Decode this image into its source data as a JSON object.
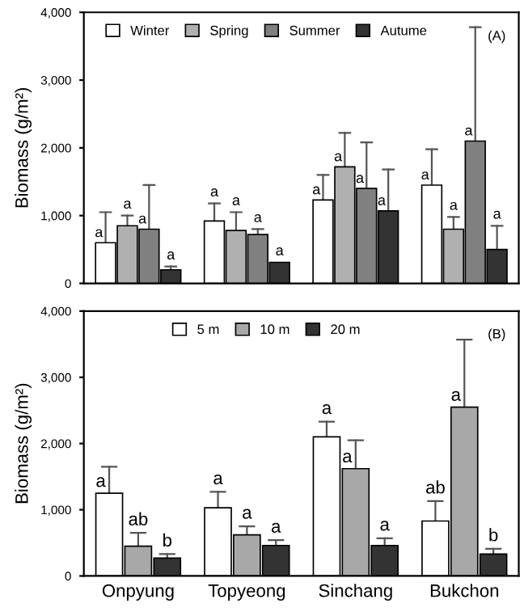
{
  "chart_data": [
    {
      "type": "bar",
      "ylabel": "Biomass (g/m²)",
      "categories": [
        null,
        null,
        null,
        null
      ],
      "tick_labels": "y",
      "ylim": [
        0,
        4000
      ],
      "yticks": [
        {
          "value": 0,
          "label": "0"
        },
        {
          "value": 1000,
          "label": "1,000"
        },
        {
          "value": 2000,
          "label": "2,000"
        },
        {
          "value": 3000,
          "label": "3,000"
        },
        {
          "value": 4000,
          "label": "4,000"
        }
      ],
      "legend": "top",
      "annotations": [
        "(A)"
      ],
      "series": [
        {
          "name": "Winter",
          "color": "#ffffff",
          "values": [
            600,
            920,
            1230,
            1450
          ],
          "errors": [
            [
              600,
              1050
            ],
            [
              920,
              1180
            ],
            [
              1230,
              1600
            ],
            [
              1450,
              1980
            ]
          ],
          "value_labels": [
            "a",
            "a",
            "a",
            "a"
          ]
        },
        {
          "name": "Spring",
          "color": "#b0b0b0",
          "values": [
            850,
            780,
            1720,
            800
          ],
          "errors": [
            [
              850,
              1000
            ],
            [
              780,
              1050
            ],
            [
              1720,
              2220
            ],
            [
              800,
              980
            ]
          ],
          "value_labels": [
            "a",
            "a",
            "a",
            "a"
          ]
        },
        {
          "name": "Summer",
          "color": "#808080",
          "values": [
            800,
            720,
            1400,
            2100
          ],
          "errors": [
            [
              800,
              1450
            ],
            [
              720,
              800
            ],
            [
              1400,
              2080
            ],
            [
              2100,
              3780
            ]
          ],
          "value_labels": [
            "a",
            "a",
            "a",
            "a"
          ]
        },
        {
          "name": "Autume",
          "color": "#333333",
          "values": [
            200,
            310,
            1070,
            500
          ],
          "errors": [
            [
              200,
              250
            ],
            null,
            [
              1070,
              1680
            ],
            [
              500,
              850
            ]
          ],
          "value_labels": [
            "a",
            "a",
            "a",
            "a"
          ]
        }
      ]
    },
    {
      "type": "bar",
      "ylabel": "Biomass (g/m²)",
      "categories": [
        "Onpyung",
        "Topyeong",
        "Sinchang",
        "Bukchon"
      ],
      "ylim": [
        0,
        4000
      ],
      "yticks": [
        {
          "value": 0,
          "label": "0"
        },
        {
          "value": 1000,
          "label": "1,000"
        },
        {
          "value": 2000,
          "label": "2,000"
        },
        {
          "value": 3000,
          "label": "3,000"
        },
        {
          "value": 4000,
          "label": "4,000"
        }
      ],
      "legend": "top",
      "annotations": [
        "(B)"
      ],
      "series": [
        {
          "name": "5 m",
          "color": "#ffffff",
          "values": [
            1250,
            1030,
            2100,
            830
          ],
          "errors": [
            [
              1250,
              1650
            ],
            [
              1030,
              1270
            ],
            [
              2100,
              2330
            ],
            [
              830,
              1130
            ]
          ],
          "value_labels": [
            "a",
            "a",
            "a",
            "ab"
          ]
        },
        {
          "name": "10 m",
          "color": "#a8a8a8",
          "values": [
            450,
            620,
            1620,
            2550
          ],
          "errors": [
            [
              450,
              650
            ],
            [
              620,
              750
            ],
            [
              1620,
              2050
            ],
            [
              2550,
              3570
            ]
          ],
          "value_labels": [
            "ab",
            "a",
            "a",
            "a"
          ]
        },
        {
          "name": "20 m",
          "color": "#333333",
          "values": [
            270,
            460,
            460,
            330
          ],
          "errors": [
            [
              270,
              330
            ],
            [
              460,
              540
            ],
            [
              460,
              570
            ],
            [
              330,
              410
            ]
          ],
          "value_labels": [
            "b",
            "a",
            "a",
            "b"
          ]
        }
      ]
    }
  ]
}
